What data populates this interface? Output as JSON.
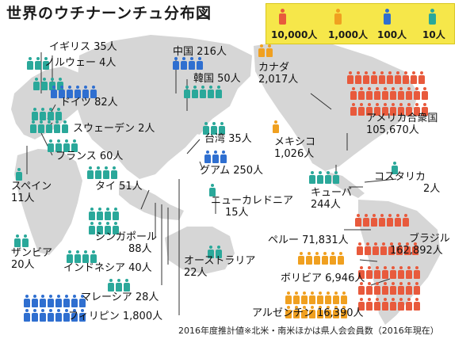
{
  "title": "世界のウチナーンチュ分布図",
  "legend": {
    "items": [
      {
        "label": "10,000人",
        "color": "#e85a3c"
      },
      {
        "label": "1,000人",
        "color": "#f0a020"
      },
      {
        "label": "100人",
        "color": "#2f6fd0"
      },
      {
        "label": "10人",
        "color": "#2aa89a"
      }
    ]
  },
  "regions": {
    "uk": {
      "name": "イギリス 35人"
    },
    "norway": {
      "name": "ノルウェー 4人"
    },
    "germany": {
      "name": "ドイツ 82人"
    },
    "sweden": {
      "name": "スウェーデン 2人"
    },
    "france": {
      "name": "フランス 60人"
    },
    "spain": {
      "name": "スペイン",
      "count": "11人"
    },
    "zambia": {
      "name": "ザンビア",
      "count": "20人"
    },
    "thailand": {
      "name": "タイ 51人"
    },
    "singapore": {
      "name": "シンガポール",
      "count": "88人"
    },
    "indonesia": {
      "name": "インドネシア 40人"
    },
    "malaysia": {
      "name": "マレーシア 28人"
    },
    "philippines": {
      "name": "フィリピン 1,800人"
    },
    "china": {
      "name": "中国 216人"
    },
    "korea": {
      "name": "韓国 50人"
    },
    "taiwan": {
      "name": "台湾 35人"
    },
    "guam": {
      "name": "グアム 250人"
    },
    "newcaledonia": {
      "name": "ニューカレドニア",
      "count": "15人"
    },
    "australia": {
      "name": "オーストラリア",
      "count": "22人"
    },
    "canada": {
      "name": "カナダ",
      "count": "2,017人"
    },
    "usa": {
      "name": "アメリカ合衆国",
      "count": "105,670人"
    },
    "mexico": {
      "name": "メキシコ",
      "count": "1,026人"
    },
    "costarica": {
      "name": "コスタリカ",
      "count": "2人"
    },
    "cuba": {
      "name": "キューバ",
      "count": "244人"
    },
    "peru": {
      "name": "ペルー 71,831人"
    },
    "bolivia": {
      "name": "ボリビア 6,946人"
    },
    "argentina": {
      "name": "アルゼンチン 16,390人"
    },
    "brazil": {
      "name": "ブラジル",
      "count": "162,892人"
    }
  },
  "footnote": "2016年度推計値※北米・南米ほかは県人会会員数（2016年現在）"
}
